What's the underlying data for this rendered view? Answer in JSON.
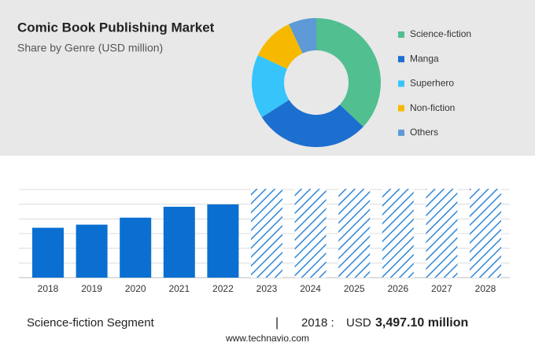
{
  "chart_data": [
    {
      "type": "pie",
      "title": "Comic Book Publishing Market",
      "subtitle": "Share by Genre (USD million)",
      "donut": true,
      "categories": [
        "Science-fiction",
        "Manga",
        "Superhero",
        "Non-fiction",
        "Others"
      ],
      "values": [
        37,
        29,
        16,
        11,
        7
      ],
      "colors": [
        "#52bf90",
        "#1c6fcf",
        "#36c4fb",
        "#f6b900",
        "#5d9ad6"
      ]
    },
    {
      "type": "bar",
      "categories": [
        "2018",
        "2019",
        "2020",
        "2021",
        "2022",
        "2023",
        "2024",
        "2025",
        "2026",
        "2027",
        "2028"
      ],
      "values": [
        3497.1,
        3715,
        4205,
        4970,
        5135,
        null,
        null,
        null,
        null,
        null,
        null
      ],
      "color": "#0a6fd1",
      "forecast_color": "#2f86d8",
      "ylim": [
        0,
        6175
      ],
      "grid": true
    }
  ],
  "footer": {
    "segment": "Science-fiction Segment",
    "separator": "|",
    "year": "2018 :",
    "currency": "USD",
    "amount": "3,497.10 million",
    "source": "www.technavio.com"
  }
}
